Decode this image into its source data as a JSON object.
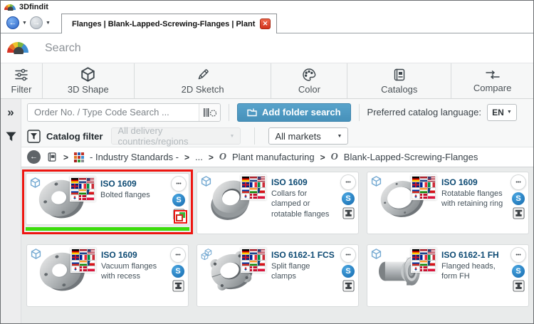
{
  "window": {
    "app_title": "3Dfindit",
    "tab_title": "Flanges | Blank-Lapped-Screwing-Flanges | Plant ma...",
    "close_glyph": "✕",
    "back_arrow": "←",
    "forward_arrow": "→",
    "nav_caret": "▼"
  },
  "search": {
    "placeholder": "Search"
  },
  "toolbar": {
    "items": [
      {
        "label": "Filter"
      },
      {
        "label": "3D Shape"
      },
      {
        "label": "2D Sketch"
      },
      {
        "label": "Color"
      },
      {
        "label": "Catalogs"
      },
      {
        "label": "Compare"
      }
    ]
  },
  "order_row": {
    "collapse_glyph": "»",
    "order_placeholder": "Order No. / Type Code Search ...",
    "add_folder_label": "Add folder search",
    "language_label": "Preferred catalog language:",
    "language_value": "EN",
    "caret": "▼"
  },
  "catalog_filter": {
    "label": "Catalog filter",
    "countries_value": "All delivery countries/regions",
    "markets_value": "All markets",
    "caret": "▼"
  },
  "breadcrumb": {
    "back_arrow": "←",
    "chevron": ">",
    "industry": "- Industry Standards -",
    "ellipsis": "...",
    "o_glyph": "O",
    "plant": "Plant manufacturing",
    "category": "Blank-Lapped-Screwing-Flanges"
  },
  "flags": [
    "de",
    "nl",
    "us",
    "gb",
    "fr",
    "it",
    "ru",
    "in",
    "cz",
    "kr",
    "dk",
    "pl"
  ],
  "cards": [
    {
      "title": "ISO 1609",
      "subtitle": "Bolted flanges",
      "highlighted": true
    },
    {
      "title": "ISO 1609",
      "subtitle": "Collars for clamped or rotatable flanges"
    },
    {
      "title": "ISO 1609",
      "subtitle": "Rotatable flanges with retaining ring"
    },
    {
      "title": "ISO 1609",
      "subtitle": "Vacuum flanges with recess"
    },
    {
      "title": "ISO 6162-1 FCS",
      "subtitle": "Split flange clamps"
    },
    {
      "title": "ISO 6162-1 FH",
      "subtitle": "Flanged heads, form FH"
    }
  ],
  "card_glyphs": {
    "more": "•••",
    "price_badge": "S"
  },
  "colors": {
    "accent_blue": "#4791ba",
    "annotation_red": "#ee1510",
    "result_green": "#3bdc0b",
    "title_navy": "#0d4a73",
    "badge_blue": "#1f7fc8"
  }
}
